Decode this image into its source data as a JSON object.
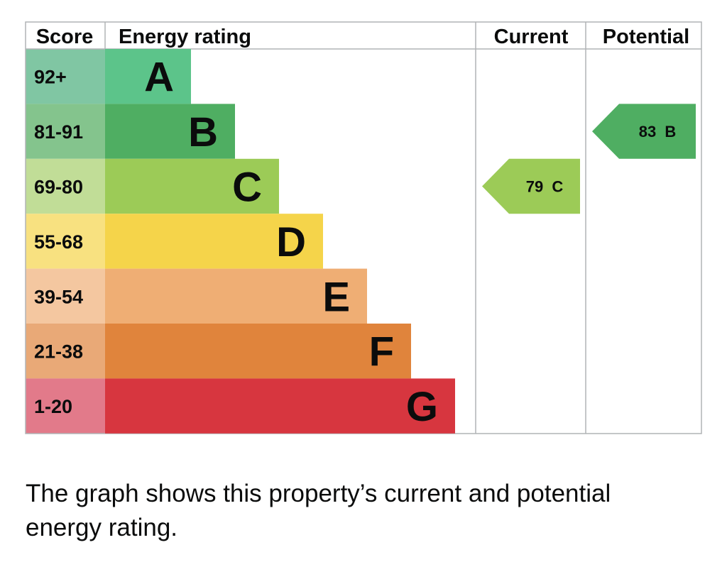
{
  "chart_data": {
    "type": "epc-rating",
    "headers": {
      "score": "Score",
      "rating": "Energy rating",
      "current": "Current",
      "potential": "Potential"
    },
    "bands": [
      {
        "letter": "A",
        "range": "92+",
        "color": "#5cc48a",
        "score_color": "#80c6a3"
      },
      {
        "letter": "B",
        "range": "81-91",
        "color": "#4fae62",
        "score_color": "#84c48d"
      },
      {
        "letter": "C",
        "range": "69-80",
        "color": "#9ccb57",
        "score_color": "#c1dd97"
      },
      {
        "letter": "D",
        "range": "55-68",
        "color": "#f5d44a",
        "score_color": "#f8e180"
      },
      {
        "letter": "E",
        "range": "39-54",
        "color": "#efae74",
        "score_color": "#f4c7a0"
      },
      {
        "letter": "F",
        "range": "21-38",
        "color": "#e0843c",
        "score_color": "#e9a977"
      },
      {
        "letter": "G",
        "range": "1-20",
        "color": "#d7363f",
        "score_color": "#e27a8a"
      }
    ],
    "current": {
      "score": 79,
      "band": "C",
      "label": "79  C",
      "color": "#9ccb57"
    },
    "potential": {
      "score": 83,
      "band": "B",
      "label": "83  B",
      "color": "#4fae62"
    }
  },
  "caption": "The graph shows this property’s current and potential energy rating."
}
